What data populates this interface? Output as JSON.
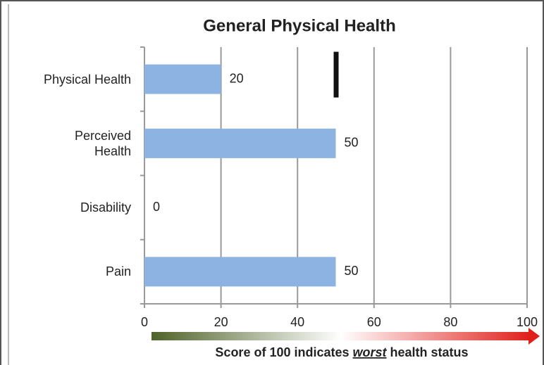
{
  "chart_data": {
    "type": "bar",
    "orientation": "horizontal",
    "title": "General Physical Health",
    "categories": [
      "Physical Health",
      "Perceived\nHealth",
      "Disability",
      "Pain"
    ],
    "values": [
      20,
      50,
      0,
      50
    ],
    "color": "#8db3e2",
    "markers": [
      50,
      null,
      null,
      null
    ],
    "marker_color": "#111111",
    "xlim": [
      0,
      100
    ],
    "xticks": [
      0,
      20,
      40,
      60,
      80,
      100
    ],
    "grid": true,
    "note_parts": [
      "Score of 100 indicates ",
      "worst",
      " health status"
    ]
  }
}
